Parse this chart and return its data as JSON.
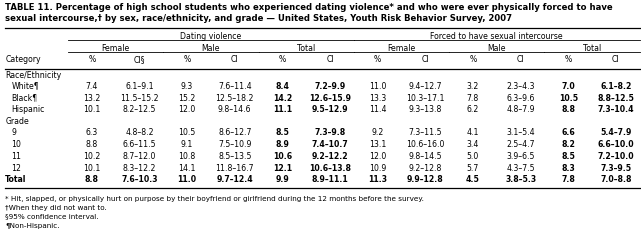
{
  "title_line1": "TABLE 11. Percentage of high school students who experienced dating violence* and who were ever physically forced to have",
  "title_line2": "sexual intercourse,† by sex, race/ethnicity, and grade — United States, Youth Risk Behavior Survey, 2007",
  "col_group1": "Dating violence",
  "col_group2": "Forced to have sexual intercourse",
  "sub_headers": [
    "Female",
    "Male",
    "Total",
    "Female",
    "Male",
    "Total"
  ],
  "leaf_headers": [
    "%",
    "CI§",
    "%",
    "CI",
    "%",
    "CI",
    "%",
    "CI",
    "%",
    "CI",
    "%",
    "CI"
  ],
  "category_label": "Category",
  "sections": [
    {
      "section_header": "Race/Ethnicity",
      "rows": [
        {
          "label": "White¶",
          "values": [
            "7.4",
            "6.1–9.1",
            "9.3",
            "7.6–11.4",
            "8.4",
            "7.2–9.9",
            "11.0",
            "9.4–12.7",
            "3.2",
            "2.3–4.3",
            "7.0",
            "6.1–8.2"
          ]
        },
        {
          "label": "Black¶",
          "values": [
            "13.2",
            "11.5–15.2",
            "15.2",
            "12.5–18.2",
            "14.2",
            "12.6–15.9",
            "13.3",
            "10.3–17.1",
            "7.8",
            "6.3–9.6",
            "10.5",
            "8.8–12.5"
          ]
        },
        {
          "label": "Hispanic",
          "values": [
            "10.1",
            "8.2–12.5",
            "12.0",
            "9.8–14.6",
            "11.1",
            "9.5–12.9",
            "11.4",
            "9.3–13.8",
            "6.2",
            "4.8–7.9",
            "8.8",
            "7.3–10.4"
          ]
        }
      ]
    },
    {
      "section_header": "Grade",
      "rows": [
        {
          "label": "9",
          "values": [
            "6.3",
            "4.8–8.2",
            "10.5",
            "8.6–12.7",
            "8.5",
            "7.3–9.8",
            "9.2",
            "7.3–11.5",
            "4.1",
            "3.1–5.4",
            "6.6",
            "5.4–7.9"
          ]
        },
        {
          "label": "10",
          "values": [
            "8.8",
            "6.6–11.5",
            "9.1",
            "7.5–10.9",
            "8.9",
            "7.4–10.7",
            "13.1",
            "10.6–16.0",
            "3.4",
            "2.5–4.7",
            "8.2",
            "6.6–10.0"
          ]
        },
        {
          "label": "11",
          "values": [
            "10.2",
            "8.7–12.0",
            "10.8",
            "8.5–13.5",
            "10.6",
            "9.2–12.2",
            "12.0",
            "9.8–14.5",
            "5.0",
            "3.9–6.5",
            "8.5",
            "7.2–10.0"
          ]
        },
        {
          "label": "12",
          "values": [
            "10.1",
            "8.3–12.2",
            "14.1",
            "11.8–16.7",
            "12.1",
            "10.6–13.8",
            "10.9",
            "9.2–12.8",
            "5.7",
            "4.3–7.5",
            "8.3",
            "7.3–9.5"
          ]
        }
      ]
    }
  ],
  "total_row": {
    "label": "Total",
    "values": [
      "8.8",
      "7.6–10.3",
      "11.0",
      "9.7–12.4",
      "9.9",
      "8.9–11.1",
      "11.3",
      "9.9–12.8",
      "4.5",
      "3.8–5.3",
      "7.8",
      "7.0–8.8"
    ]
  },
  "footnotes": [
    "* Hit, slapped, or physically hurt on purpose by their boyfriend or girlfriend during the 12 months before the survey.",
    "†When they did not want to.",
    "§95% confidence interval.",
    "¶Non-Hispanic."
  ],
  "bold_cols": [
    4,
    5,
    10,
    11
  ],
  "bg_color": "#FFFFFF",
  "text_color": "#000000"
}
